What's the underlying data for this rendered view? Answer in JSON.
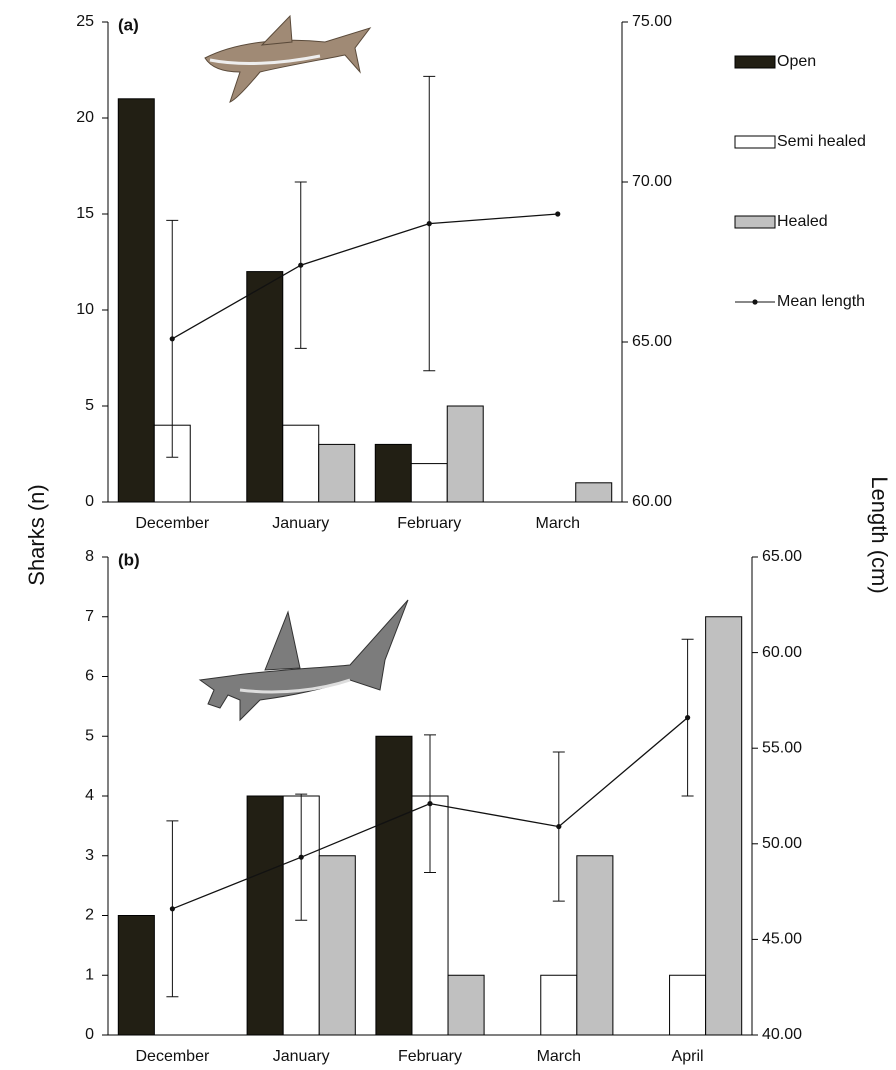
{
  "ylabel": "Sharks (n)",
  "y2label": "Length (cm)",
  "chart_data": [
    {
      "type": "bar",
      "title": "(a)",
      "legend": "outside-right",
      "categories": [
        "December",
        "January",
        "February",
        "March"
      ],
      "series": [
        {
          "name": "Open",
          "color": "#221f14",
          "values": [
            21,
            12,
            3,
            0
          ]
        },
        {
          "name": "Semi healed",
          "color": "#ffffff",
          "values": [
            4,
            4,
            2,
            0
          ]
        },
        {
          "name": "Healed",
          "color": "#c0c0c0",
          "values": [
            0,
            3,
            5,
            1
          ]
        },
        {
          "name": "Mean length",
          "color": "#111111",
          "type": "line",
          "axis": "y2",
          "values": [
            65.1,
            67.4,
            68.7,
            69.0
          ],
          "errors": [
            3.7,
            2.6,
            4.6,
            null
          ]
        }
      ],
      "ylim": [
        0,
        25
      ],
      "yticks": [
        0,
        5,
        10,
        15,
        20,
        25
      ],
      "y2lim": [
        60,
        75
      ],
      "y2ticks": [
        {
          "value": 60,
          "label": "60.00"
        },
        {
          "value": 65,
          "label": "65.00"
        },
        {
          "value": 70,
          "label": "70.00"
        },
        {
          "value": 75,
          "label": "75.00"
        }
      ]
    },
    {
      "type": "bar",
      "title": "(b)",
      "categories": [
        "December",
        "January",
        "February",
        "March",
        "April"
      ],
      "series": [
        {
          "color": "#221f14",
          "values": [
            2,
            4,
            5,
            0,
            0
          ]
        },
        {
          "color": "#ffffff",
          "values": [
            0,
            4,
            4,
            1,
            1
          ]
        },
        {
          "color": "#c0c0c0",
          "values": [
            0,
            3,
            1,
            3,
            7
          ]
        },
        {
          "color": "#111111",
          "type": "line",
          "axis": "y2",
          "values": [
            46.6,
            49.3,
            52.1,
            50.9,
            56.6
          ],
          "errors": [
            4.6,
            3.3,
            3.6,
            3.9,
            4.1
          ]
        }
      ],
      "ylim": [
        0,
        8
      ],
      "yticks": [
        0,
        1,
        2,
        3,
        4,
        5,
        6,
        7,
        8
      ],
      "y2lim": [
        40,
        65
      ],
      "y2ticks": [
        {
          "value": 40,
          "label": "40.00"
        },
        {
          "value": 45,
          "label": "45.00"
        },
        {
          "value": 50,
          "label": "50.00"
        },
        {
          "value": 55,
          "label": "55.00"
        },
        {
          "value": 60,
          "label": "60.00"
        },
        {
          "value": 65,
          "label": "65.00"
        }
      ]
    }
  ]
}
